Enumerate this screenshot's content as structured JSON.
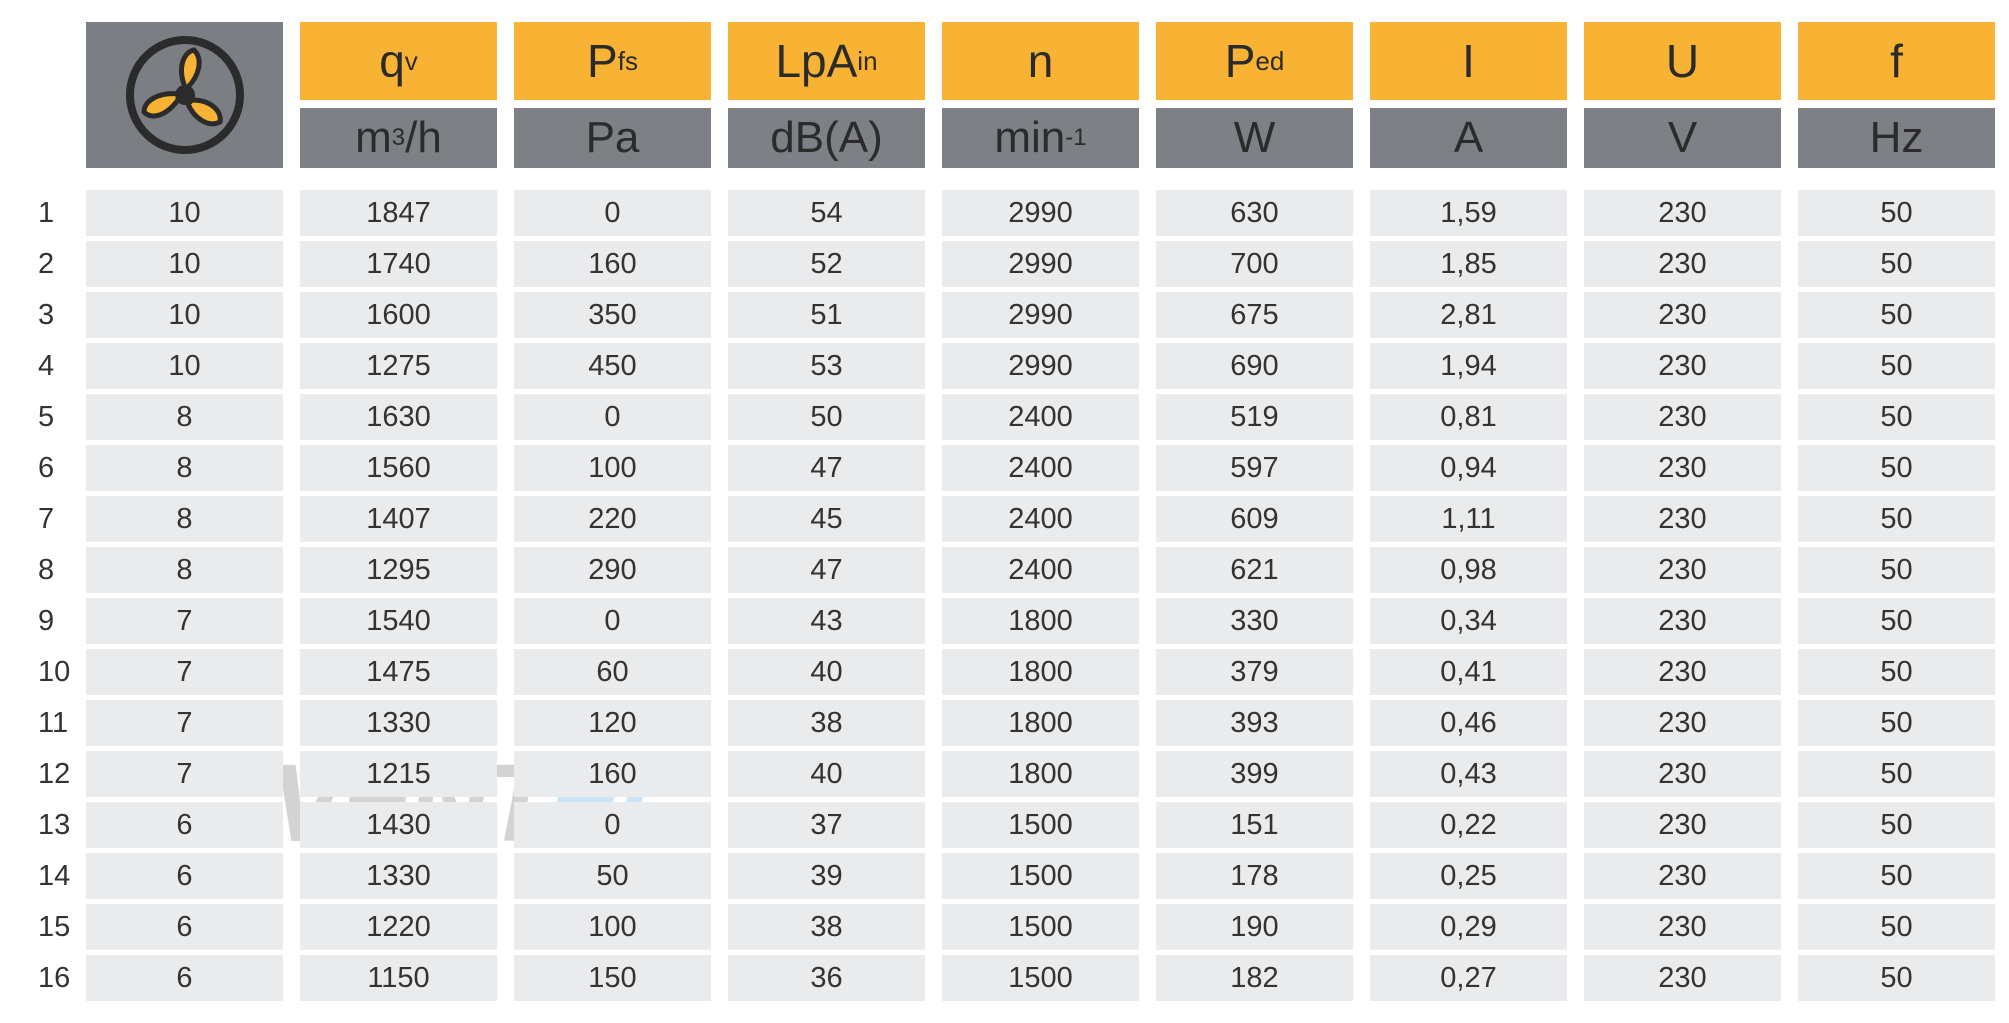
{
  "watermark": [
    "VENT",
    "EL"
  ],
  "headers": [
    {
      "symbol": "q",
      "sub": "v",
      "unit": {
        "text": "m",
        "sup": "3",
        "after": "/h"
      }
    },
    {
      "symbol": "P",
      "sub": "fs",
      "unit": {
        "text": "Pa"
      }
    },
    {
      "symbol": "LpA",
      "sub": "in",
      "unit": {
        "text": "dB(A)"
      }
    },
    {
      "symbol": "n",
      "unit": {
        "text": "min",
        "sup": "-1"
      }
    },
    {
      "symbol": "P",
      "sub": "ed",
      "unit": {
        "text": "W"
      }
    },
    {
      "symbol": "I",
      "unit": {
        "text": "A"
      }
    },
    {
      "symbol": "U",
      "unit": {
        "text": "V"
      }
    },
    {
      "symbol": "f",
      "unit": {
        "text": "Hz"
      }
    }
  ],
  "rows": [
    [
      1,
      10,
      1847,
      0,
      54,
      2990,
      630,
      "1,59",
      230,
      50
    ],
    [
      2,
      10,
      1740,
      160,
      52,
      2990,
      700,
      "1,85",
      230,
      50
    ],
    [
      3,
      10,
      1600,
      350,
      51,
      2990,
      675,
      "2,81",
      230,
      50
    ],
    [
      4,
      10,
      1275,
      450,
      53,
      2990,
      690,
      "1,94",
      230,
      50
    ],
    [
      5,
      8,
      1630,
      0,
      50,
      2400,
      519,
      "0,81",
      230,
      50
    ],
    [
      6,
      8,
      1560,
      100,
      47,
      2400,
      597,
      "0,94",
      230,
      50
    ],
    [
      7,
      8,
      1407,
      220,
      45,
      2400,
      609,
      "1,11",
      230,
      50
    ],
    [
      8,
      8,
      1295,
      290,
      47,
      2400,
      621,
      "0,98",
      230,
      50
    ],
    [
      9,
      7,
      1540,
      0,
      43,
      1800,
      330,
      "0,34",
      230,
      50
    ],
    [
      10,
      7,
      1475,
      60,
      40,
      1800,
      379,
      "0,41",
      230,
      50
    ],
    [
      11,
      7,
      1330,
      120,
      38,
      1800,
      393,
      "0,46",
      230,
      50
    ],
    [
      12,
      7,
      1215,
      160,
      40,
      1800,
      399,
      "0,43",
      230,
      50
    ],
    [
      13,
      6,
      1430,
      0,
      37,
      1500,
      151,
      "0,22",
      230,
      50
    ],
    [
      14,
      6,
      1330,
      50,
      39,
      1500,
      178,
      "0,25",
      230,
      50
    ],
    [
      15,
      6,
      1220,
      100,
      38,
      1500,
      190,
      "0,29",
      230,
      50
    ],
    [
      16,
      6,
      1150,
      150,
      36,
      1500,
      182,
      "0,27",
      230,
      50
    ]
  ]
}
